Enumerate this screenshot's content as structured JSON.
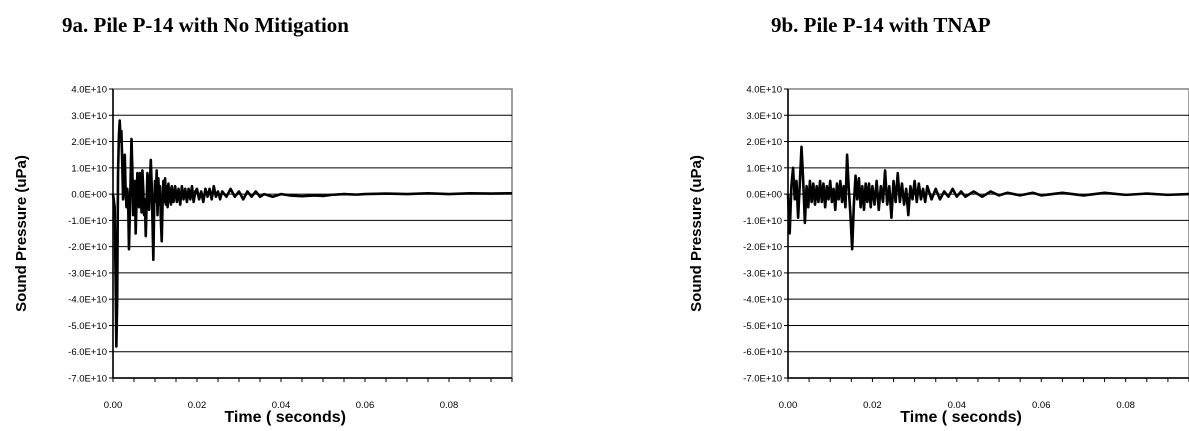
{
  "chart_data": [
    {
      "type": "line",
      "title": "9a. Pile P-14 with No Mitigation",
      "xlabel": "Time ( seconds)",
      "ylabel": "Sound Pressure (uPa)",
      "xlim": [
        0,
        0.095
      ],
      "ylim": [
        -70000000000.0,
        40000000000.0
      ],
      "x_ticks": [
        "0.00",
        "0.02",
        "0.04",
        "0.06",
        "0.08"
      ],
      "x_tick_values": [
        0,
        0.02,
        0.04,
        0.06,
        0.08
      ],
      "y_ticks": [
        "4.0E+10",
        "3.0E+10",
        "2.0E+10",
        "1.0E+10",
        "0.0E+00",
        "-1.0E+10",
        "-2.0E+10",
        "-3.0E+10",
        "-4.0E+10",
        "-5.0E+10",
        "-6.0E+10",
        "-7.0E+10"
      ],
      "y_tick_values": [
        40000000000.0,
        30000000000.0,
        20000000000.0,
        10000000000.0,
        0,
        -10000000000.0,
        -20000000000.0,
        -30000000000.0,
        -40000000000.0,
        -50000000000.0,
        -60000000000.0,
        -70000000000.0
      ],
      "grid": "horizontal",
      "series": [
        {
          "color": "#000000",
          "points": [
            [
              0.0,
              0.0
            ],
            [
              0.0004,
              -5000000000.0
            ],
            [
              0.0006,
              -30000000000.0
            ],
            [
              0.0008,
              -58000000000.0
            ],
            [
              0.001,
              -40000000000.0
            ],
            [
              0.0012,
              8000000000.0
            ],
            [
              0.0014,
              22000000000.0
            ],
            [
              0.0016,
              28000000000.0
            ],
            [
              0.0018,
              20000000000.0
            ],
            [
              0.002,
              24000000000.0
            ],
            [
              0.0022,
              12000000000.0
            ],
            [
              0.0024,
              -2000000000.0
            ],
            [
              0.0026,
              3000000000.0
            ],
            [
              0.0028,
              15000000000.0
            ],
            [
              0.003,
              2000000000.0
            ],
            [
              0.0032,
              -5000000000.0
            ],
            [
              0.0034,
              2000000000.0
            ],
            [
              0.0036,
              -2000000000.0
            ],
            [
              0.0038,
              -21000000000.0
            ],
            [
              0.004,
              -8000000000.0
            ],
            [
              0.0042,
              6000000000.0
            ],
            [
              0.0044,
              21000000000.0
            ],
            [
              0.0046,
              10000000000.0
            ],
            [
              0.0048,
              -8000000000.0
            ],
            [
              0.005,
              3000000000.0
            ],
            [
              0.0052,
              5000000000.0
            ],
            [
              0.0054,
              -15000000000.0
            ],
            [
              0.0056,
              -3000000000.0
            ],
            [
              0.0058,
              8000000000.0
            ],
            [
              0.006,
              -1000000000.0
            ],
            [
              0.0062,
              -5000000000.0
            ],
            [
              0.0064,
              8000000000.0
            ],
            [
              0.0066,
              3000000000.0
            ],
            [
              0.0068,
              -7000000000.0
            ],
            [
              0.007,
              9000000000.0
            ],
            [
              0.0072,
              2000000000.0
            ],
            [
              0.0074,
              -8000000000.0
            ],
            [
              0.0076,
              -2000000000.0
            ],
            [
              0.0078,
              -16000000000.0
            ],
            [
              0.008,
              -4000000000.0
            ],
            [
              0.0082,
              8000000000.0
            ],
            [
              0.0084,
              3000000000.0
            ],
            [
              0.0086,
              -6000000000.0
            ],
            [
              0.0088,
              4000000000.0
            ],
            [
              0.009,
              13000000000.0
            ],
            [
              0.0092,
              4000000000.0
            ],
            [
              0.0094,
              -10000000000.0
            ],
            [
              0.0096,
              -25000000000.0
            ],
            [
              0.0098,
              -5000000000.0
            ],
            [
              0.01,
              5000000000.0
            ],
            [
              0.0102,
              -3000000000.0
            ],
            [
              0.0104,
              9000000000.0
            ],
            [
              0.0106,
              -8000000000.0
            ],
            [
              0.0108,
              6000000000.0
            ],
            [
              0.011,
              -4000000000.0
            ],
            [
              0.0112,
              3000000000.0
            ],
            [
              0.0114,
              -10000000000.0
            ],
            [
              0.0116,
              -18000000000.0
            ],
            [
              0.0118,
              -4000000000.0
            ],
            [
              0.012,
              5000000000.0
            ],
            [
              0.0122,
              -3000000000.0
            ],
            [
              0.0124,
              6000000000.0
            ],
            [
              0.0126,
              -4000000000.0
            ],
            [
              0.0128,
              3000000000.0
            ],
            [
              0.013,
              -5000000000.0
            ],
            [
              0.0132,
              4000000000.0
            ],
            [
              0.0134,
              -3000000000.0
            ],
            [
              0.0136,
              2000000000.0
            ],
            [
              0.0138,
              -4000000000.0
            ],
            [
              0.014,
              3000000000.0
            ],
            [
              0.0144,
              -3000000000.0
            ],
            [
              0.0148,
              3000000000.0
            ],
            [
              0.0152,
              -3000000000.0
            ],
            [
              0.0156,
              2000000000.0
            ],
            [
              0.016,
              -4000000000.0
            ],
            [
              0.0164,
              3000000000.0
            ],
            [
              0.0168,
              -2000000000.0
            ],
            [
              0.0172,
              2000000000.0
            ],
            [
              0.0176,
              -3000000000.0
            ],
            [
              0.018,
              2000000000.0
            ],
            [
              0.0184,
              -2000000000.0
            ],
            [
              0.0188,
              3000000000.0
            ],
            [
              0.0192,
              -3000000000.0
            ],
            [
              0.0196,
              1000000000.0
            ],
            [
              0.02,
              2000000000.0
            ],
            [
              0.0205,
              -2000000000.0
            ],
            [
              0.021,
              1000000000.0
            ],
            [
              0.0215,
              -3000000000.0
            ],
            [
              0.022,
              2000000000.0
            ],
            [
              0.0225,
              -1000000000.0
            ],
            [
              0.023,
              2000000000.0
            ],
            [
              0.0235,
              -2000000000.0
            ],
            [
              0.024,
              3000000000.0
            ],
            [
              0.0245,
              -1000000000.0
            ],
            [
              0.025,
              1000000000.0
            ],
            [
              0.0255,
              -2000000000.0
            ],
            [
              0.026,
              1000000000.0
            ],
            [
              0.027,
              -1000000000.0
            ],
            [
              0.028,
              2000000000.0
            ],
            [
              0.029,
              -1000000000.0
            ],
            [
              0.03,
              1000000000.0
            ],
            [
              0.031,
              -2000000000.0
            ],
            [
              0.032,
              1000000000.0
            ],
            [
              0.033,
              -1000000000.0
            ],
            [
              0.034,
              1000000000.0
            ],
            [
              0.035,
              -1000000000.0
            ],
            [
              0.036,
              0.0
            ],
            [
              0.038,
              -1000000000.0
            ],
            [
              0.04,
              0.0
            ],
            [
              0.042,
              -500000000.0
            ],
            [
              0.045,
              -800000000.0
            ],
            [
              0.048,
              -500000000.0
            ],
            [
              0.05,
              -700000000.0
            ],
            [
              0.052,
              -300000000.0
            ],
            [
              0.055,
              0.0
            ],
            [
              0.058,
              -200000000.0
            ],
            [
              0.06,
              0.0
            ],
            [
              0.065,
              200000000.0
            ],
            [
              0.07,
              0.0
            ],
            [
              0.075,
              300000000.0
            ],
            [
              0.08,
              0.0
            ],
            [
              0.085,
              300000000.0
            ],
            [
              0.09,
              200000000.0
            ],
            [
              0.095,
              300000000.0
            ]
          ]
        }
      ]
    },
    {
      "type": "line",
      "title": "9b. Pile P-14 with TNAP",
      "xlabel": "Time ( seconds)",
      "ylabel": "Sound Pressure (uPa)",
      "xlim": [
        0,
        0.095
      ],
      "ylim": [
        -70000000000.0,
        40000000000.0
      ],
      "x_ticks": [
        "0.00",
        "0.02",
        "0.04",
        "0.06",
        "0.08"
      ],
      "x_tick_values": [
        0,
        0.02,
        0.04,
        0.06,
        0.08
      ],
      "y_ticks": [
        "4.0E+10",
        "3.0E+10",
        "2.0E+10",
        "1.0E+10",
        "0.0E+00",
        "-1.0E+10",
        "-2.0E+10",
        "-3.0E+10",
        "-4.0E+10",
        "-5.0E+10",
        "-6.0E+10",
        "-7.0E+10"
      ],
      "y_tick_values": [
        40000000000.0,
        30000000000.0,
        20000000000.0,
        10000000000.0,
        0,
        -10000000000.0,
        -20000000000.0,
        -30000000000.0,
        -40000000000.0,
        -50000000000.0,
        -60000000000.0,
        -70000000000.0
      ],
      "grid": "horizontal",
      "series": [
        {
          "color": "#000000",
          "points": [
            [
              0.0,
              0.0
            ],
            [
              0.0004,
              -15000000000.0
            ],
            [
              0.0008,
              3000000000.0
            ],
            [
              0.0012,
              10000000000.0
            ],
            [
              0.0016,
              -2000000000.0
            ],
            [
              0.002,
              5000000000.0
            ],
            [
              0.0024,
              -9000000000.0
            ],
            [
              0.0028,
              4000000000.0
            ],
            [
              0.0032,
              18000000000.0
            ],
            [
              0.0036,
              5000000000.0
            ],
            [
              0.004,
              -11000000000.0
            ],
            [
              0.0044,
              3000000000.0
            ],
            [
              0.0048,
              -5000000000.0
            ],
            [
              0.0052,
              5000000000.0
            ],
            [
              0.0056,
              -3000000000.0
            ],
            [
              0.006,
              4000000000.0
            ],
            [
              0.0064,
              -4000000000.0
            ],
            [
              0.0068,
              3000000000.0
            ],
            [
              0.0072,
              -3000000000.0
            ],
            [
              0.0076,
              5000000000.0
            ],
            [
              0.008,
              -3000000000.0
            ],
            [
              0.0084,
              4000000000.0
            ],
            [
              0.0088,
              -5000000000.0
            ],
            [
              0.0092,
              3000000000.0
            ],
            [
              0.0096,
              -2000000000.0
            ],
            [
              0.01,
              5000000000.0
            ],
            [
              0.0104,
              -3000000000.0
            ],
            [
              0.0108,
              2000000000.0
            ],
            [
              0.0112,
              -6000000000.0
            ],
            [
              0.0116,
              4000000000.0
            ],
            [
              0.012,
              -2000000000.0
            ],
            [
              0.0124,
              5000000000.0
            ],
            [
              0.0128,
              -3000000000.0
            ],
            [
              0.0132,
              3000000000.0
            ],
            [
              0.0136,
              -5000000000.0
            ],
            [
              0.014,
              15000000000.0
            ],
            [
              0.0144,
              2000000000.0
            ],
            [
              0.0148,
              -8000000000.0
            ],
            [
              0.0152,
              -21000000000.0
            ],
            [
              0.0156,
              -4000000000.0
            ],
            [
              0.016,
              7000000000.0
            ],
            [
              0.0164,
              -2000000000.0
            ],
            [
              0.0168,
              6000000000.0
            ],
            [
              0.0172,
              -5000000000.0
            ],
            [
              0.0176,
              3000000000.0
            ],
            [
              0.018,
              -6000000000.0
            ],
            [
              0.0184,
              4000000000.0
            ],
            [
              0.0188,
              -3000000000.0
            ],
            [
              0.0192,
              4000000000.0
            ],
            [
              0.0196,
              -5000000000.0
            ],
            [
              0.02,
              3000000000.0
            ],
            [
              0.0205,
              -4000000000.0
            ],
            [
              0.021,
              5000000000.0
            ],
            [
              0.0215,
              -6000000000.0
            ],
            [
              0.022,
              3000000000.0
            ],
            [
              0.0225,
              -3000000000.0
            ],
            [
              0.023,
              9000000000.0
            ],
            [
              0.0235,
              -4000000000.0
            ],
            [
              0.024,
              3000000000.0
            ],
            [
              0.0245,
              -9000000000.0
            ],
            [
              0.025,
              5000000000.0
            ],
            [
              0.0255,
              -3000000000.0
            ],
            [
              0.026,
              8000000000.0
            ],
            [
              0.0265,
              -3000000000.0
            ],
            [
              0.027,
              4000000000.0
            ],
            [
              0.0275,
              -4000000000.0
            ],
            [
              0.028,
              2000000000.0
            ],
            [
              0.0285,
              -8000000000.0
            ],
            [
              0.029,
              3000000000.0
            ],
            [
              0.0295,
              -2000000000.0
            ],
            [
              0.03,
              5000000000.0
            ],
            [
              0.0305,
              -3000000000.0
            ],
            [
              0.031,
              4000000000.0
            ],
            [
              0.0315,
              -2000000000.0
            ],
            [
              0.032,
              2000000000.0
            ],
            [
              0.0325,
              -3000000000.0
            ],
            [
              0.033,
              3000000000.0
            ],
            [
              0.034,
              -2000000000.0
            ],
            [
              0.035,
              2000000000.0
            ],
            [
              0.036,
              -2000000000.0
            ],
            [
              0.037,
              1000000000.0
            ],
            [
              0.038,
              -1000000000.0
            ],
            [
              0.039,
              2000000000.0
            ],
            [
              0.04,
              -1000000000.0
            ],
            [
              0.041,
              1000000000.0
            ],
            [
              0.042,
              -1000000000.0
            ],
            [
              0.044,
              1000000000.0
            ],
            [
              0.046,
              -1000000000.0
            ],
            [
              0.048,
              1000000000.0
            ],
            [
              0.05,
              -500000000.0
            ],
            [
              0.052,
              500000000.0
            ],
            [
              0.055,
              -500000000.0
            ],
            [
              0.058,
              500000000.0
            ],
            [
              0.06,
              -500000000.0
            ],
            [
              0.065,
              500000000.0
            ],
            [
              0.07,
              -500000000.0
            ],
            [
              0.075,
              500000000.0
            ],
            [
              0.08,
              -300000000.0
            ],
            [
              0.085,
              200000000.0
            ],
            [
              0.09,
              -300000000.0
            ],
            [
              0.095,
              0.0
            ]
          ]
        }
      ]
    }
  ]
}
